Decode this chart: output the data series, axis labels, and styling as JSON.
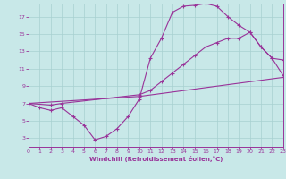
{
  "bg_color": "#c8e8e8",
  "line_color": "#993399",
  "grid_color": "#a8d0d0",
  "xlabel": "Windchill (Refroidissement éolien,°C)",
  "xlim": [
    0,
    23
  ],
  "ylim": [
    2.0,
    18.5
  ],
  "xticks": [
    0,
    1,
    2,
    3,
    4,
    5,
    6,
    7,
    8,
    9,
    10,
    11,
    12,
    13,
    14,
    15,
    16,
    17,
    18,
    19,
    20,
    21,
    22,
    23
  ],
  "yticks": [
    3,
    5,
    7,
    9,
    11,
    13,
    15,
    17
  ],
  "line1_x": [
    0,
    1,
    2,
    3,
    4,
    5,
    6,
    7,
    8,
    9,
    10,
    11,
    12,
    13,
    14,
    15,
    16,
    17,
    18,
    19,
    20,
    21,
    22,
    23
  ],
  "line1_y": [
    7.0,
    6.5,
    6.2,
    6.5,
    5.5,
    4.5,
    2.8,
    3.2,
    4.1,
    5.5,
    7.5,
    12.2,
    14.5,
    17.5,
    18.2,
    18.3,
    18.5,
    18.2,
    17.0,
    16.0,
    15.2,
    13.5,
    12.2,
    10.2
  ],
  "line2_x": [
    0,
    2,
    3,
    10,
    11,
    12,
    13,
    14,
    15,
    16,
    17,
    18,
    19,
    20,
    21,
    22,
    23
  ],
  "line2_y": [
    7.0,
    6.8,
    7.0,
    8.0,
    8.5,
    9.5,
    10.5,
    11.5,
    12.5,
    13.5,
    14.0,
    14.5,
    14.5,
    15.2,
    13.5,
    12.2,
    12.0
  ],
  "line3_x": [
    0,
    10,
    23
  ],
  "line3_y": [
    7.0,
    7.8,
    10.0
  ]
}
